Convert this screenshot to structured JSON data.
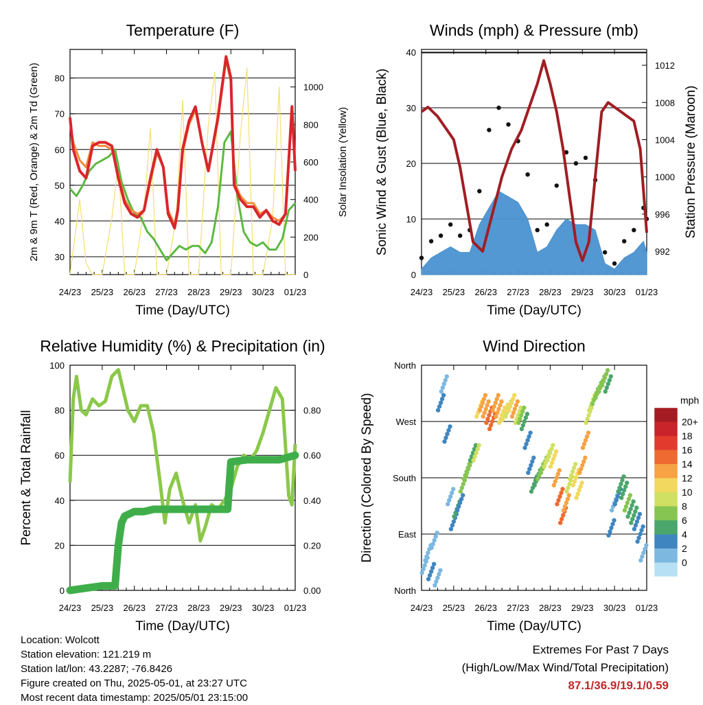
{
  "charts": {
    "temperature": {
      "title": "Temperature (F)",
      "xlabel": "Time (Day/UTC)",
      "ylabel_left": "2m & 9m T (Red, Orange) & 2m Td (Green)",
      "ylabel_right": "Solar Insolation (Yellow)",
      "x_ticks": [
        "24/23",
        "25/23",
        "26/23",
        "27/23",
        "28/23",
        "29/23",
        "30/23",
        "01/23"
      ],
      "y_ticks": [
        "30",
        "40",
        "50",
        "60",
        "70",
        "80"
      ],
      "y2_ticks": [
        "0",
        "200",
        "400",
        "600",
        "800",
        "1000"
      ]
    },
    "winds": {
      "title": "Winds (mph) & Pressure (mb)",
      "xlabel": "Time (Day/UTC)",
      "ylabel_left": "Sonic Wind & Gust (Blue, Black)",
      "ylabel_right": "Station Pressure (Maroon)",
      "x_ticks": [
        "24/23",
        "25/23",
        "26/23",
        "27/23",
        "28/23",
        "29/23",
        "30/23",
        "01/23"
      ],
      "y_ticks": [
        "0",
        "10",
        "20",
        "30",
        "40"
      ],
      "y2_ticks": [
        "992",
        "996",
        "1000",
        "1004",
        "1008",
        "1012"
      ]
    },
    "humidity": {
      "title": "Relative Humidity (%) & Precipitation (in)",
      "xlabel": "Time (Day/UTC)",
      "ylabel_left": "Percent & Total Rainfall",
      "x_ticks": [
        "24/23",
        "25/23",
        "26/23",
        "27/23",
        "28/23",
        "29/23",
        "30/23",
        "01/23"
      ],
      "y_ticks": [
        "0",
        "20",
        "40",
        "60",
        "80",
        "100"
      ],
      "y2_ticks": [
        "0.00",
        "0.20",
        "0.40",
        "0.60",
        "0.80"
      ]
    },
    "direction": {
      "title": "Wind Direction",
      "xlabel": "Time (Day/UTC)",
      "ylabel_left": "Direction (Colored By Speed)",
      "x_ticks": [
        "24/23",
        "25/23",
        "26/23",
        "27/23",
        "28/23",
        "29/23",
        "30/23",
        "01/23"
      ],
      "y_ticks": [
        "North",
        "East",
        "South",
        "West",
        "North"
      ],
      "legend_title": "mph",
      "legend_labels": [
        "20+",
        "18",
        "16",
        "14",
        "12",
        "10",
        "8",
        "6",
        "4",
        "2",
        "0"
      ],
      "legend_colors": [
        "#a31c22",
        "#c9242a",
        "#e23b2e",
        "#ee6a30",
        "#f7a244",
        "#f2d85e",
        "#d0e062",
        "#86c552",
        "#4aa66a",
        "#3f86c0",
        "#7cb8e0",
        "#b8e0f4"
      ]
    }
  },
  "chart_data": [
    {
      "type": "line",
      "title": "Temperature (F)",
      "xlabel": "Time (Day/UTC)",
      "ylabel": "2m & 9m T (Red, Orange) & 2m Td (Green)",
      "ylabel_right": "Solar Insolation (Yellow)",
      "x_range": [
        0,
        7
      ],
      "ylim": [
        25,
        88
      ],
      "y2lim": [
        0,
        1200
      ],
      "categories": [
        "24/23",
        "25/23",
        "26/23",
        "27/23",
        "28/23",
        "29/23",
        "30/23",
        "01/23"
      ],
      "series": [
        {
          "color": "#d9262b",
          "axis": "left",
          "x": [
            0,
            0.1,
            0.3,
            0.5,
            0.7,
            0.9,
            1.1,
            1.3,
            1.5,
            1.7,
            1.9,
            2.1,
            2.3,
            2.5,
            2.7,
            2.9,
            3.05,
            3.25,
            3.35,
            3.5,
            3.7,
            3.9,
            4.1,
            4.3,
            4.6,
            4.85,
            5,
            5.1,
            5.3,
            5.5,
            5.7,
            5.9,
            6.1,
            6.3,
            6.5,
            6.7,
            6.9,
            7
          ],
          "y": [
            69,
            60,
            54,
            52,
            61,
            62,
            62,
            61,
            52,
            45,
            42,
            41,
            43,
            52,
            60,
            55,
            42,
            38,
            43,
            60,
            68,
            72,
            62,
            54,
            69,
            86,
            80,
            50,
            46,
            44,
            44,
            41,
            43,
            40,
            39,
            42,
            72,
            54
          ]
        },
        {
          "color": "#f28a3a",
          "axis": "left",
          "x": [
            0,
            0.1,
            0.3,
            0.5,
            0.7,
            0.9,
            1.1,
            1.3,
            1.5,
            1.7,
            1.9,
            2.1,
            2.3,
            2.5,
            2.7,
            2.9,
            3.05,
            3.25,
            3.35,
            3.5,
            3.7,
            3.9,
            4.1,
            4.3,
            4.6,
            4.85,
            5,
            5.1,
            5.3,
            5.5,
            5.7,
            5.9,
            6.1,
            6.3,
            6.5,
            6.7,
            6.9,
            7
          ],
          "y": [
            68,
            62,
            57,
            55,
            62,
            61,
            61,
            60,
            53,
            46,
            43,
            42,
            43,
            51,
            59,
            55,
            43,
            39,
            44,
            59,
            67,
            71,
            62,
            54,
            68,
            85,
            79,
            51,
            47,
            45,
            45,
            42,
            43,
            41,
            40,
            42,
            71,
            55
          ]
        },
        {
          "color": "#5cb842",
          "axis": "left",
          "x": [
            0,
            0.2,
            0.4,
            0.6,
            0.8,
            1,
            1.2,
            1.4,
            1.6,
            1.8,
            2,
            2.2,
            2.4,
            2.6,
            2.8,
            3,
            3.2,
            3.4,
            3.6,
            3.8,
            4,
            4.2,
            4.4,
            4.6,
            4.8,
            5,
            5.2,
            5.4,
            5.6,
            5.8,
            6,
            6.2,
            6.4,
            6.6,
            6.8,
            7
          ],
          "y": [
            49,
            47,
            50,
            54,
            56,
            57,
            58,
            60,
            51,
            46,
            42,
            41,
            37,
            35,
            32,
            29,
            31,
            33,
            32,
            33,
            33,
            31,
            34,
            44,
            62,
            65,
            47,
            37,
            34,
            33,
            34,
            32,
            32,
            35,
            43,
            45
          ]
        },
        {
          "color": "#f5de6e",
          "axis": "right",
          "x": [
            0,
            0.3,
            0.5,
            0.7,
            1,
            1.3,
            1.5,
            1.7,
            2,
            2.3,
            2.5,
            2.7,
            3,
            3.3,
            3.5,
            3.7,
            4,
            4.3,
            4.5,
            4.7,
            5,
            5.3,
            5.5,
            5.7,
            6,
            6.3,
            6.5,
            6.7,
            7
          ],
          "y": [
            0,
            400,
            60,
            0,
            0,
            300,
            600,
            0,
            0,
            350,
            780,
            0,
            0,
            300,
            930,
            0,
            0,
            800,
            1080,
            0,
            0,
            750,
            1100,
            0,
            0,
            300,
            1000,
            0,
            0
          ]
        }
      ]
    },
    {
      "type": "line",
      "title": "Winds (mph) & Pressure (mb)",
      "xlabel": "Time (Day/UTC)",
      "ylabel": "Sonic Wind & Gust (Blue, Black)",
      "ylabel_right": "Station Pressure (Maroon)",
      "x_range": [
        0,
        7
      ],
      "ylim": [
        0,
        40.5
      ],
      "y2lim": [
        989.5,
        1013.7
      ],
      "categories": [
        "24/23",
        "25/23",
        "26/23",
        "27/23",
        "28/23",
        "29/23",
        "30/23",
        "01/23"
      ],
      "series": [
        {
          "color": "#4a92d0",
          "axis": "left",
          "kind": "area",
          "x": [
            0,
            0.3,
            0.6,
            0.9,
            1.2,
            1.5,
            1.8,
            2.1,
            2.4,
            2.7,
            3,
            3.3,
            3.6,
            3.9,
            4.2,
            4.5,
            4.8,
            5.1,
            5.4,
            5.7,
            6,
            6.3,
            6.6,
            6.9,
            7
          ],
          "y": [
            1,
            3,
            4,
            5,
            4,
            4,
            9,
            12,
            15,
            14,
            13,
            10,
            4,
            5,
            8,
            10,
            9,
            9,
            8,
            2,
            1,
            3,
            4,
            6,
            4
          ]
        },
        {
          "color": "#111111",
          "axis": "left",
          "kind": "points",
          "x": [
            0,
            0.3,
            0.6,
            0.9,
            1.2,
            1.5,
            1.8,
            2.1,
            2.4,
            2.7,
            3,
            3.3,
            3.6,
            3.9,
            4.2,
            4.5,
            4.8,
            5.1,
            5.4,
            5.7,
            6,
            6.3,
            6.6,
            6.9,
            7
          ],
          "y": [
            3,
            6,
            7,
            9,
            7,
            8,
            15,
            26,
            30,
            27,
            24,
            18,
            8,
            9,
            16,
            22,
            20,
            21,
            17,
            4,
            2,
            6,
            8,
            12,
            10
          ]
        },
        {
          "color": "#a01e24",
          "axis": "right",
          "x": [
            0,
            0.2,
            0.5,
            0.8,
            1,
            1.2,
            1.4,
            1.6,
            1.9,
            2.2,
            2.5,
            2.8,
            3.1,
            3.4,
            3.6,
            3.8,
            4,
            4.2,
            4.4,
            4.6,
            4.8,
            5,
            5.2,
            5.4,
            5.6,
            5.8,
            6,
            6.2,
            6.4,
            6.6,
            6.8,
            7
          ],
          "y": [
            1007,
            1007.5,
            1006.5,
            1005,
            1004,
            1001,
            997,
            993,
            992,
            996,
            1000,
            1003,
            1005,
            1008,
            1010,
            1012.5,
            1010,
            1007,
            1003,
            998,
            993,
            991,
            993,
            1000,
            1007,
            1008,
            1007.5,
            1007,
            1006.5,
            1006,
            1003,
            994
          ]
        }
      ]
    },
    {
      "type": "line",
      "title": "Relative Humidity (%) & Precipitation (in)",
      "xlabel": "Time (Day/UTC)",
      "ylabel": "Percent & Total Rainfall",
      "x_range": [
        0,
        7
      ],
      "ylim": [
        0,
        100
      ],
      "y2lim": [
        0,
        1.0
      ],
      "categories": [
        "24/23",
        "25/23",
        "26/23",
        "27/23",
        "28/23",
        "29/23",
        "30/23",
        "01/23"
      ],
      "series": [
        {
          "color": "#8bc84a",
          "axis": "left",
          "x": [
            0,
            0.1,
            0.2,
            0.35,
            0.5,
            0.7,
            0.9,
            1.1,
            1.3,
            1.5,
            1.6,
            1.8,
            2,
            2.2,
            2.4,
            2.6,
            2.8,
            2.95,
            3.1,
            3.3,
            3.5,
            3.7,
            3.9,
            4.05,
            4.2,
            4.4,
            4.6,
            4.8,
            5,
            5.2,
            5.4,
            5.6,
            5.8,
            6,
            6.2,
            6.4,
            6.6,
            6.8,
            6.9,
            7
          ],
          "y": [
            48,
            85,
            95,
            80,
            78,
            85,
            82,
            84,
            95,
            98,
            92,
            80,
            75,
            82,
            82,
            70,
            48,
            30,
            45,
            52,
            40,
            30,
            38,
            22,
            28,
            38,
            36,
            40,
            45,
            55,
            60,
            58,
            62,
            70,
            80,
            90,
            85,
            42,
            38,
            65
          ]
        },
        {
          "color": "#3fae4a",
          "axis": "right",
          "x": [
            0,
            0.5,
            1,
            1.4,
            1.5,
            1.6,
            1.7,
            2,
            2.3,
            2.6,
            3,
            3.5,
            4,
            4.5,
            4.9,
            5,
            5.5,
            6,
            6.5,
            7
          ],
          "y": [
            0,
            0.01,
            0.02,
            0.02,
            0.2,
            0.3,
            0.33,
            0.35,
            0.35,
            0.36,
            0.36,
            0.36,
            0.36,
            0.36,
            0.36,
            0.57,
            0.58,
            0.58,
            0.58,
            0.6
          ]
        }
      ]
    },
    {
      "type": "scatter",
      "title": "Wind Direction",
      "xlabel": "Time (Day/UTC)",
      "ylabel": "Direction (Colored By Speed)",
      "x_range": [
        0,
        7
      ],
      "ylim": [
        0,
        360
      ],
      "y_tick_labels": [
        "North",
        "East",
        "South",
        "West",
        "North"
      ],
      "categories": [
        "24/23",
        "25/23",
        "26/23",
        "27/23",
        "28/23",
        "29/23",
        "30/23",
        "01/23"
      ],
      "x": [
        0.1,
        0.2,
        0.3,
        0.4,
        0.5,
        0.6,
        0.7,
        0.8,
        0.9,
        1.0,
        1.1,
        1.2,
        1.3,
        1.4,
        1.5,
        1.6,
        1.7,
        1.8,
        1.9,
        2.0,
        2.1,
        2.2,
        2.3,
        2.4,
        2.5,
        2.6,
        2.7,
        2.8,
        2.9,
        3.0,
        3.1,
        3.2,
        3.3,
        3.4,
        3.5,
        3.6,
        3.7,
        3.8,
        3.9,
        4.0,
        4.1,
        4.2,
        4.3,
        4.4,
        4.5,
        4.6,
        4.7,
        4.8,
        4.9,
        5.0,
        5.1,
        5.2,
        5.3,
        5.4,
        5.5,
        5.6,
        5.7,
        5.8,
        5.9,
        6.0,
        6.1,
        6.2,
        6.3,
        6.4,
        6.5,
        6.6,
        6.7,
        6.8,
        6.9
      ],
      "y": [
        40,
        60,
        30,
        80,
        20,
        300,
        330,
        250,
        150,
        110,
        130,
        140,
        170,
        190,
        200,
        220,
        220,
        290,
        300,
        290,
        280,
        270,
        300,
        290,
        280,
        285,
        290,
        300,
        290,
        280,
        280,
        270,
        240,
        200,
        170,
        180,
        190,
        200,
        210,
        220,
        210,
        180,
        150,
        120,
        140,
        170,
        190,
        180,
        160,
        200,
        240,
        280,
        300,
        310,
        320,
        330,
        340,
        330,
        100,
        140,
        150,
        170,
        160,
        140,
        130,
        120,
        110,
        90,
        60
      ],
      "speed": [
        2,
        1,
        3,
        2,
        1,
        3,
        2,
        3,
        2,
        4,
        5,
        4,
        7,
        8,
        8,
        6,
        9,
        12,
        14,
        14,
        15,
        15,
        14,
        13,
        12,
        11,
        10,
        12,
        13,
        9,
        7,
        5,
        4,
        4,
        5,
        6,
        7,
        8,
        9,
        10,
        12,
        14,
        15,
        16,
        13,
        10,
        9,
        11,
        12,
        13,
        14,
        10,
        9,
        8,
        7,
        8,
        7,
        6,
        3,
        2,
        4,
        5,
        6,
        7,
        6,
        5,
        4,
        3,
        2
      ]
    }
  ],
  "info": {
    "location": "Location: Wolcott",
    "elevation": "Station elevation: 121.219 m",
    "latlon": "Station lat/lon: 43.2287; -76.8426",
    "created": "Figure created on Thu, 2025-05-01, at 23:27 UTC",
    "recent": "Most recent data timestamp: 2025/05/01 23:15:00"
  },
  "extremes": {
    "line1": "Extremes For Past 7 Days",
    "line2": "(High/Low/Max Wind/Total Precipitation)",
    "values": "87.1/36.9/19.1/0.59"
  }
}
